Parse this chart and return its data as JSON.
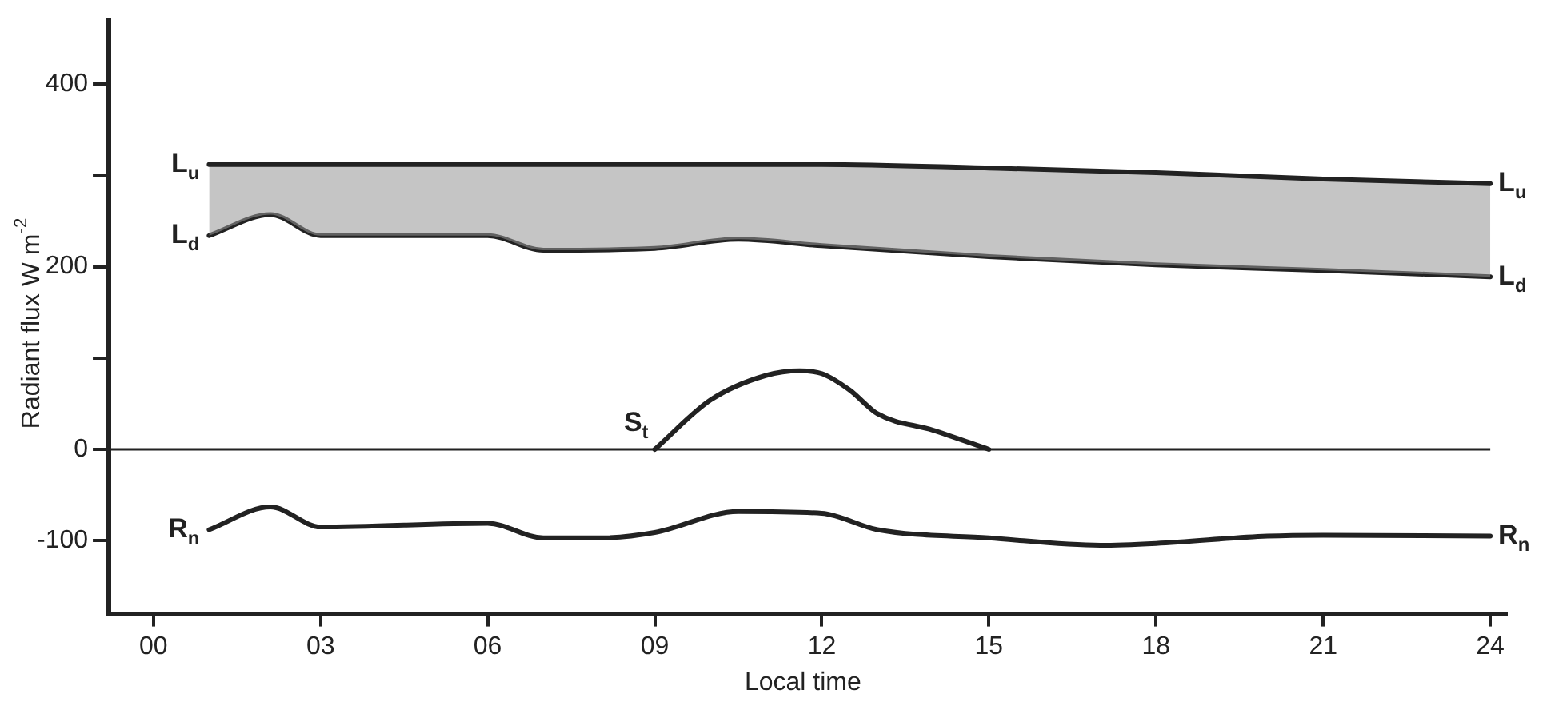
{
  "chart_data": {
    "type": "line",
    "xlabel": "Local time",
    "ylabel": "Radiant flux W m$^{-2}$",
    "xlim": [
      -0.8,
      24.3
    ],
    "ylim": [
      -180,
      470
    ],
    "xticks": [
      {
        "value": 0,
        "label": "00"
      },
      {
        "value": 3,
        "label": "03"
      },
      {
        "value": 6,
        "label": "06"
      },
      {
        "value": 9,
        "label": "09"
      },
      {
        "value": 12,
        "label": "12"
      },
      {
        "value": 15,
        "label": "15"
      },
      {
        "value": 18,
        "label": "18"
      },
      {
        "value": 21,
        "label": "21"
      },
      {
        "value": 24,
        "label": "24"
      }
    ],
    "yticks": [
      -100,
      0,
      {
        "value": 100,
        "label": null
      },
      200,
      {
        "value": 300,
        "label": null
      },
      400
    ],
    "grid": false,
    "legend": false,
    "line_style": "solid",
    "marker": "none",
    "ref_lines": [
      {
        "axis": "y",
        "value": 0,
        "color": "#222222"
      }
    ],
    "series": [
      {
        "name": "L$_{u}$",
        "type": "area",
        "color": "#222222",
        "x": [
          1,
          2.1,
          3,
          6,
          7,
          9,
          10.5,
          12,
          15,
          18,
          21,
          24
        ],
        "values": [
          312,
          312,
          312,
          312,
          312,
          312,
          312,
          312,
          308,
          303,
          296,
          291
        ]
      },
      {
        "name": "L$_{d}$",
        "color": "#222222",
        "x": [
          1,
          2.1,
          3,
          6,
          7,
          9,
          10.5,
          12,
          15,
          18,
          21,
          24
        ],
        "values": [
          234,
          257,
          234,
          234,
          218,
          220,
          230,
          223,
          211,
          202,
          196,
          189
        ]
      },
      {
        "name": "S$_{t}$",
        "color": "#222222",
        "x": [
          9,
          10,
          11,
          11.6,
          12,
          12.5,
          13,
          14,
          15
        ],
        "values": [
          0,
          54,
          81,
          86,
          83,
          65,
          39,
          21,
          0
        ]
      },
      {
        "name": "R$_{n}$",
        "color": "#222222",
        "x": [
          1,
          2.1,
          3,
          6,
          7,
          8,
          9,
          10.5,
          12,
          13,
          15,
          17,
          18,
          20,
          21,
          24
        ],
        "values": [
          -88,
          -63,
          -85,
          -81,
          -97,
          -97,
          -91,
          -68,
          -70,
          -88,
          -97,
          -105,
          -103,
          -95,
          -94,
          -95
        ]
      }
    ]
  }
}
